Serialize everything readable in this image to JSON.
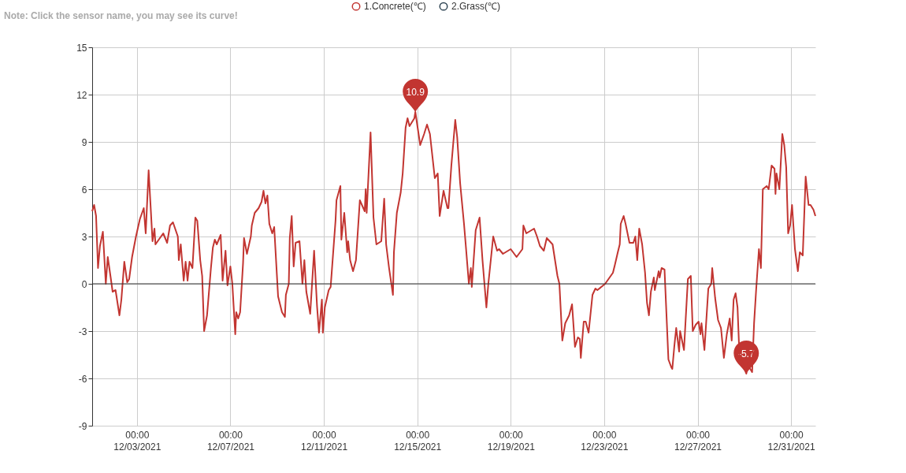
{
  "chart_data": {
    "type": "line",
    "x": [
      "2021-12-01T02:00",
      "2021-12-01T04:00",
      "2021-12-01T06:00",
      "2021-12-01T08:00",
      "2021-12-01T10:00",
      "2021-12-01T13:00",
      "2021-12-01T16:00",
      "2021-12-01T18:00",
      "2021-12-01T21:00",
      "2021-12-01T23:00",
      "2021-12-02T02:00",
      "2021-12-02T06:00",
      "2021-12-02T08:00",
      "2021-12-02T11:00",
      "2021-12-02T14:00",
      "2021-12-02T16:00",
      "2021-12-02T19:00",
      "2021-12-02T23:00",
      "2021-12-03T03:00",
      "2021-12-03T07:00",
      "2021-12-03T09:00",
      "2021-12-03T12:00",
      "2021-12-03T16:00",
      "2021-12-03T18:00",
      "2021-12-03T19:00",
      "2021-12-04T03:00",
      "2021-12-04T07:00",
      "2021-12-04T10:00",
      "2021-12-04T13:00",
      "2021-12-04T18:00",
      "2021-12-04T19:00",
      "2021-12-04T21:00",
      "2021-12-05T00:00",
      "2021-12-05T02:00",
      "2021-12-05T04:00",
      "2021-12-05T06:00",
      "2021-12-05T09:00",
      "2021-12-05T12:00",
      "2021-12-05T14:00",
      "2021-12-05T17:00",
      "2021-12-05T19:00",
      "2021-12-05T21:00",
      "2021-12-06T00:00",
      "2021-12-06T04:00",
      "2021-12-06T06:00",
      "2021-12-06T08:00",
      "2021-12-06T10:00",
      "2021-12-06T14:00",
      "2021-12-06T16:00",
      "2021-12-06T19:00",
      "2021-12-06T21:00",
      "2021-12-07T00:00",
      "2021-12-07T02:00",
      "2021-12-07T05:00",
      "2021-12-07T06:00",
      "2021-12-07T08:00",
      "2021-12-07T10:00",
      "2021-12-07T13:00",
      "2021-12-07T14:00",
      "2021-12-07T17:00",
      "2021-12-07T21:00",
      "2021-12-07T22:00",
      "2021-12-08T01:00",
      "2021-12-08T05:00",
      "2021-12-08T08:00",
      "2021-12-08T10:00",
      "2021-12-08T12:00",
      "2021-12-08T14:00",
      "2021-12-08T16:00",
      "2021-12-08T19:00",
      "2021-12-08T21:00",
      "2021-12-09T01:00",
      "2021-12-09T05:00",
      "2021-12-09T08:00",
      "2021-12-09T09:00",
      "2021-12-09T12:00",
      "2021-12-09T13:00",
      "2021-12-09T15:00",
      "2021-12-09T17:00",
      "2021-12-09T19:00",
      "2021-12-09T23:00",
      "2021-12-10T02:00",
      "2021-12-10T04:00",
      "2021-12-10T06:00",
      "2021-12-10T10:00",
      "2021-12-10T14:00",
      "2021-12-10T17:00",
      "2021-12-10T19:00",
      "2021-12-10T22:00",
      "2021-12-10T23:00",
      "2021-12-11T01:00",
      "2021-12-11T05:00",
      "2021-12-11T07:00",
      "2021-12-11T12:00",
      "2021-12-11T13:00",
      "2021-12-11T17:00",
      "2021-12-11T18:00",
      "2021-12-11T21:00",
      "2021-12-12T00:00",
      "2021-12-12T01:00",
      "2021-12-12T03:00",
      "2021-12-12T06:00",
      "2021-12-12T09:00",
      "2021-12-12T13:00",
      "2021-12-12T18:00",
      "2021-12-12T19:00",
      "2021-12-12T20:00",
      "2021-12-13T00:00",
      "2021-12-13T03:00",
      "2021-12-13T06:00",
      "2021-12-13T11:00",
      "2021-12-13T14:00",
      "2021-12-13T16:00",
      "2021-12-13T19:00",
      "2021-12-13T23:00",
      "2021-12-14T00:00",
      "2021-12-14T03:00",
      "2021-12-14T07:00",
      "2021-12-14T09:00",
      "2021-12-14T12:00",
      "2021-12-14T14:00",
      "2021-12-14T16:00",
      "2021-12-14T21:00",
      "2021-12-14T22:00",
      "2021-12-15T03:00",
      "2021-12-15T07:00",
      "2021-12-15T10:00",
      "2021-12-15T13:00",
      "2021-12-15T18:00",
      "2021-12-15T21:00",
      "2021-12-15T23:00",
      "2021-12-16T03:00",
      "2021-12-16T07:00",
      "2021-12-16T08:00",
      "2021-12-16T11:00",
      "2021-12-16T15:00",
      "2021-12-16T17:00",
      "2021-12-16T20:00",
      "2021-12-17T00:00",
      "2021-12-17T02:00",
      "2021-12-17T05:00",
      "2021-12-17T07:00",
      "2021-12-17T08:00",
      "2021-12-17T12:00",
      "2021-12-17T16:00",
      "2021-12-17T19:00",
      "2021-12-17T23:00",
      "2021-12-18T01:00",
      "2021-12-18T06:00",
      "2021-12-18T10:00",
      "2021-12-18T12:00",
      "2021-12-18T16:00",
      "2021-12-19T00:00",
      "2021-12-19T06:00",
      "2021-12-19T12:00",
      "2021-12-19T13:00",
      "2021-12-19T16:00",
      "2021-12-20T00:00",
      "2021-12-20T03:00",
      "2021-12-20T06:00",
      "2021-12-20T10:00",
      "2021-12-20T13:00",
      "2021-12-20T19:00",
      "2021-12-21T00:00",
      "2021-12-21T02:00",
      "2021-12-21T05:00",
      "2021-12-21T08:00",
      "2021-12-21T12:00",
      "2021-12-21T15:00",
      "2021-12-21T18:00",
      "2021-12-21T21:00",
      "2021-12-21T23:00",
      "2021-12-22T00:00",
      "2021-12-22T03:00",
      "2021-12-22T05:00",
      "2021-12-22T08:00",
      "2021-12-22T12:00",
      "2021-12-22T15:00",
      "2021-12-22T17:00",
      "2021-12-23T01:00",
      "2021-12-23T09:00",
      "2021-12-23T11:00",
      "2021-12-23T14:00",
      "2021-12-23T16:00",
      "2021-12-23T17:00",
      "2021-12-23T20:00",
      "2021-12-23T22:00",
      "2021-12-24T02:00",
      "2021-12-24T06:00",
      "2021-12-24T08:00",
      "2021-12-24T10:00",
      "2021-12-24T12:00",
      "2021-12-24T15:00",
      "2021-12-24T18:00",
      "2021-12-24T20:00",
      "2021-12-24T22:00",
      "2021-12-25T00:00",
      "2021-12-25T03:00",
      "2021-12-25T04:00",
      "2021-12-25T08:00",
      "2021-12-25T09:00",
      "2021-12-25T11:00",
      "2021-12-25T14:00",
      "2021-12-25T18:00",
      "2021-12-25T21:00",
      "2021-12-25T22:00",
      "2021-12-26T00:00",
      "2021-12-26T02:00",
      "2021-12-26T05:00",
      "2021-12-26T06:00",
      "2021-12-26T10:00",
      "2021-12-26T14:00",
      "2021-12-26T17:00",
      "2021-12-26T19:00",
      "2021-12-26T22:00",
      "2021-12-27T01:00",
      "2021-12-27T03:00",
      "2021-12-27T04:00",
      "2021-12-27T07:00",
      "2021-12-27T11:00",
      "2021-12-27T14:00",
      "2021-12-27T15:00",
      "2021-12-27T18:00",
      "2021-12-27T21:00",
      "2021-12-28T00:00",
      "2021-12-28T03:00",
      "2021-12-28T06:00",
      "2021-12-28T09:00",
      "2021-12-28T11:00",
      "2021-12-28T13:00",
      "2021-12-28T15:00",
      "2021-12-28T17:00",
      "2021-12-28T19:00",
      "2021-12-28T23:00",
      "2021-12-29T02:00",
      "2021-12-29T04:00",
      "2021-12-29T06:00",
      "2021-12-29T08:00",
      "2021-12-29T10:00",
      "2021-12-29T12:00",
      "2021-12-29T15:00",
      "2021-12-29T17:00",
      "2021-12-29T19:00",
      "2021-12-29T23:00",
      "2021-12-30T01:00",
      "2021-12-30T04:00",
      "2021-12-30T07:00",
      "2021-12-30T08:00",
      "2021-12-30T09:00",
      "2021-12-30T12:00",
      "2021-12-30T15:00",
      "2021-12-30T17:00",
      "2021-12-30T19:00",
      "2021-12-30T21:00",
      "2021-12-30T23:00",
      "2021-12-31T01:00",
      "2021-12-31T04:00",
      "2021-12-31T07:00",
      "2021-12-31T09:00",
      "2021-12-31T12:00",
      "2021-12-31T15:00",
      "2021-12-31T18:00",
      "2021-12-31T20:00",
      "2021-12-31T23:00",
      "2022-01-01T01:00"
    ],
    "series": [
      {
        "name": "1.Concrete(℃)",
        "color": "#c23531",
        "values": [
          4.6,
          5.0,
          4.3,
          1.0,
          2.4,
          3.3,
          0.0,
          1.7,
          0.4,
          -0.5,
          -0.4,
          -2.0,
          -1.0,
          1.4,
          0.1,
          0.3,
          1.7,
          3.0,
          4.1,
          4.8,
          3.2,
          7.2,
          2.7,
          3.5,
          2.5,
          3.2,
          2.6,
          3.7,
          3.9,
          3.0,
          1.5,
          2.5,
          0.2,
          1.4,
          0.2,
          1.4,
          1.0,
          4.2,
          4.0,
          1.5,
          0.5,
          -3.0,
          -2.0,
          1.0,
          2.3,
          2.8,
          2.5,
          3.1,
          0.2,
          2.1,
          -0.1,
          1.1,
          0.0,
          -3.2,
          -1.8,
          -2.2,
          -1.8,
          1.3,
          2.9,
          1.9,
          3.0,
          3.7,
          4.5,
          4.8,
          5.2,
          5.9,
          5.1,
          5.6,
          3.8,
          3.2,
          3.6,
          -0.8,
          -1.8,
          -2.1,
          -0.7,
          0.0,
          2.9,
          4.3,
          1.1,
          2.6,
          2.7,
          0.0,
          1.5,
          -0.5,
          -1.9,
          2.1,
          -1.4,
          -3.1,
          -1.0,
          -3.1,
          -1.5,
          -0.4,
          -0.2,
          4.0,
          5.3,
          6.2,
          2.8,
          4.5,
          2.0,
          2.7,
          1.5,
          0.8,
          1.5,
          5.3,
          4.6,
          6.0,
          4.5,
          9.6,
          4.2,
          2.5,
          2.7,
          5.4,
          2.5,
          1.0,
          -0.7,
          2.0,
          4.5,
          5.8,
          7.0,
          9.9,
          10.5,
          10.0,
          10.5,
          10.9,
          8.8,
          9.5,
          10.1,
          9.5,
          6.7,
          7.0,
          4.3,
          5.9,
          4.8,
          4.8,
          7.5,
          10.4,
          9.3,
          6.4,
          3.8,
          2.3,
          0.0,
          1.0,
          -0.2,
          3.4,
          4.2,
          1.5,
          -1.5,
          0.0,
          3.0,
          2.1,
          2.2,
          1.9,
          2.2,
          1.7,
          2.2,
          3.7,
          3.2,
          3.5,
          3.0,
          2.4,
          2.1,
          2.9,
          2.5,
          0.5,
          0.0,
          -3.6,
          -2.5,
          -2.0,
          -1.3,
          -4.0,
          -3.4,
          -3.5,
          -4.7,
          -2.4,
          -2.4,
          -3.1,
          -0.7,
          -0.3,
          -0.4,
          0.0,
          0.7,
          1.2,
          2.0,
          2.5,
          3.8,
          4.3,
          3.8,
          2.6,
          2.6,
          3.0,
          1.5,
          3.5,
          2.5,
          0.7,
          -1.2,
          -2.0,
          -0.5,
          0.4,
          -0.4,
          0.8,
          0.4,
          1.0,
          0.9,
          -4.8,
          -5.3,
          -5.4,
          -4.0,
          -2.8,
          -4.3,
          -3.0,
          -4.2,
          0.3,
          0.5,
          -3.0,
          -2.6,
          -2.4,
          -3.2,
          -2.5,
          -4.2,
          -0.3,
          0.0,
          1.0,
          -0.9,
          -2.3,
          -2.8,
          -4.7,
          -3.2,
          -2.2,
          -3.6,
          -1.0,
          -0.6,
          -1.5,
          -4.6,
          -5.2,
          -5.7,
          -5.0,
          -5.4,
          -5.6,
          -2.5,
          -0.5,
          2.2,
          1.0,
          6.0,
          6.2,
          6.0,
          7.5,
          7.3,
          5.7,
          7.0,
          6.0,
          9.5,
          8.8,
          7.4,
          3.2,
          3.7,
          5.0,
          2.2,
          0.8,
          2.0,
          1.8,
          6.8,
          5.0,
          5.0,
          4.7,
          4.3
        ]
      },
      {
        "name": "2.Grass(℃)",
        "color": "#2f4554",
        "values": [
          null,
          null,
          null,
          null,
          null,
          null,
          null,
          null,
          null,
          null,
          null,
          null,
          null,
          null,
          null,
          null,
          null,
          null,
          null,
          null,
          null,
          null,
          null,
          null,
          null,
          null,
          null,
          null,
          null,
          null,
          null,
          null,
          null,
          null,
          null,
          null,
          null,
          null,
          null,
          null,
          null,
          null,
          null,
          null,
          null,
          null,
          null,
          null,
          null,
          null,
          null,
          null,
          null,
          null,
          null,
          null,
          null,
          null,
          null,
          null,
          null,
          null,
          null,
          null,
          null,
          null,
          null,
          null,
          null,
          null,
          null,
          null,
          null,
          null,
          null,
          null,
          null,
          null,
          null,
          null,
          null,
          null,
          null,
          null,
          null,
          null,
          null,
          null,
          null,
          null,
          null,
          null,
          null,
          null,
          null,
          null,
          null,
          null,
          null,
          null,
          null,
          null,
          null,
          null,
          null,
          null,
          null,
          null,
          null,
          null,
          null,
          null,
          null,
          null,
          null,
          null,
          null,
          null,
          null,
          null,
          null,
          null,
          null,
          null,
          null,
          null,
          null,
          null,
          null,
          null,
          null,
          null,
          null,
          null,
          null,
          null,
          null,
          null,
          null,
          null,
          null,
          null,
          null,
          null,
          null,
          null,
          null,
          null,
          null,
          null,
          null,
          null,
          null,
          null,
          null,
          null,
          null,
          null,
          null,
          null,
          null,
          null,
          null,
          null,
          null,
          null,
          null,
          null,
          null,
          null,
          null,
          null,
          null,
          null,
          null,
          null,
          null,
          null,
          null,
          null,
          null,
          null,
          null,
          null,
          null,
          null,
          null,
          null,
          null,
          null,
          null,
          null,
          null,
          null,
          null,
          null,
          null,
          null,
          null,
          null,
          null,
          null,
          null,
          null,
          null,
          null,
          null,
          null,
          null,
          null,
          null,
          null,
          null,
          null,
          null,
          null,
          null,
          null,
          null,
          null,
          null,
          null,
          null,
          null,
          null,
          null,
          null,
          null,
          null,
          null,
          null,
          null,
          null,
          null,
          null,
          null,
          null,
          null,
          null,
          null,
          null,
          null,
          null,
          null,
          null,
          null,
          null,
          null,
          null,
          null,
          null,
          null,
          null,
          null,
          null,
          null,
          null,
          null,
          null,
          null,
          null,
          null,
          null,
          null,
          null
        ]
      }
    ],
    "xlim": [
      "2021-12-01T02:00",
      "2022-01-01T01:00"
    ],
    "xticks": [
      {
        "value": "2021-12-03T00:00",
        "label": "00:00\n12/03/2021"
      },
      {
        "value": "2021-12-07T00:00",
        "label": "00:00\n12/07/2021"
      },
      {
        "value": "2021-12-11T00:00",
        "label": "00:00\n12/11/2021"
      },
      {
        "value": "2021-12-15T00:00",
        "label": "00:00\n12/15/2021"
      },
      {
        "value": "2021-12-19T00:00",
        "label": "00:00\n12/19/2021"
      },
      {
        "value": "2021-12-23T00:00",
        "label": "00:00\n12/23/2021"
      },
      {
        "value": "2021-12-27T00:00",
        "label": "00:00\n12/27/2021"
      },
      {
        "value": "2021-12-31T00:00",
        "label": "00:00\n12/31/2021"
      }
    ],
    "ylim": [
      -9,
      15
    ],
    "yticks": [
      -9,
      -6,
      -3,
      0,
      3,
      6,
      9,
      12,
      15
    ],
    "grid": true,
    "legend": "top",
    "annotations": [
      "Note: Click the sensor name, you may see its curve!",
      {
        "text": "10.9",
        "x": "2021-12-14T22:00",
        "y": 10.9
      },
      {
        "text": "-5.7",
        "x": "2021-12-29T02:00",
        "y": -5.7
      }
    ]
  }
}
